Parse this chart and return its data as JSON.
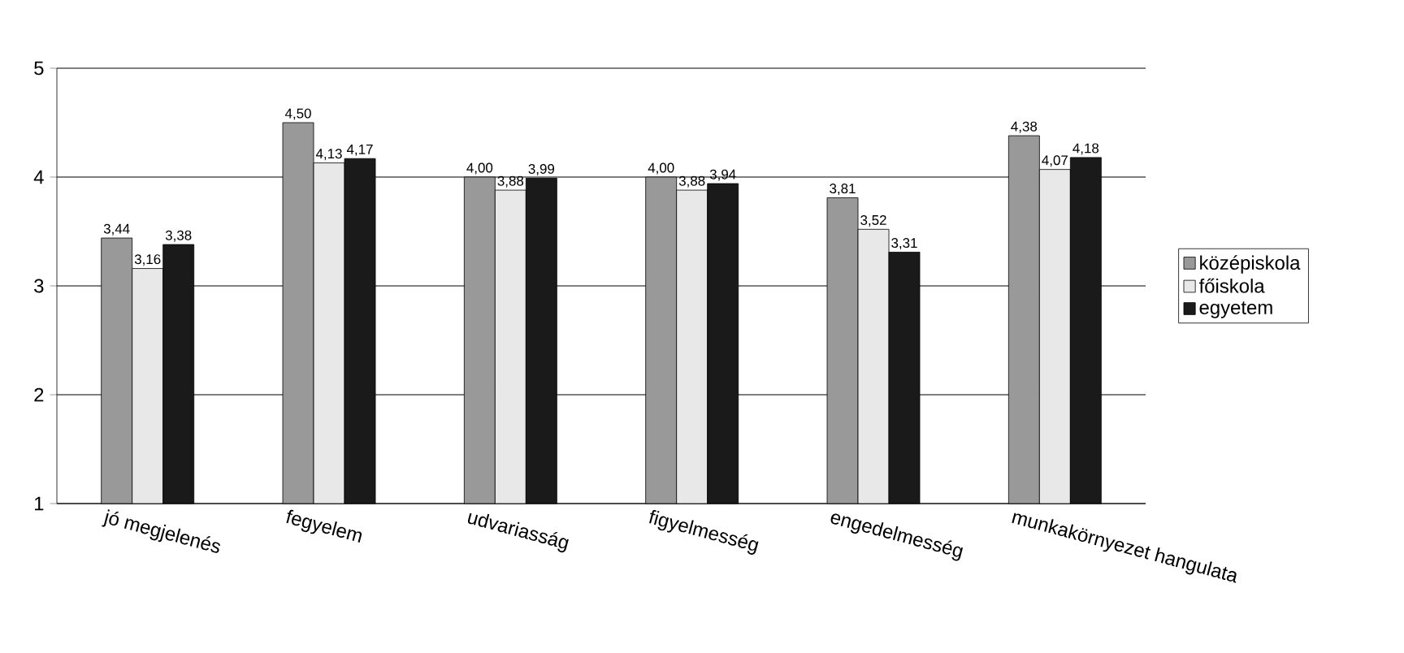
{
  "chart_data": {
    "type": "bar",
    "categories": [
      "jó megjelenés",
      "fegyelem",
      "udvariasság",
      "figyelmesség",
      "engedelmesség",
      "munkakörnyezet hangulata"
    ],
    "series": [
      {
        "name": "középiskola",
        "color": "#999999",
        "values": [
          3.44,
          4.5,
          4.0,
          4.0,
          3.81,
          4.38
        ],
        "value_labels": [
          "3,44",
          "4,50",
          "4,00",
          "4,00",
          "3,81",
          "4,38"
        ]
      },
      {
        "name": "főiskola",
        "color": "#e8e8e8",
        "values": [
          3.16,
          4.13,
          3.88,
          3.88,
          3.52,
          4.07
        ],
        "value_labels": [
          "3,16",
          "4,13",
          "3,88",
          "3,88",
          "3,52",
          "4,07"
        ]
      },
      {
        "name": "egyetem",
        "color": "#1a1a1a",
        "values": [
          3.38,
          4.17,
          3.99,
          3.94,
          3.31,
          4.18
        ],
        "value_labels": [
          "3,38",
          "4,17",
          "3,99",
          "3,94",
          "3,31",
          "4,18"
        ]
      }
    ],
    "ylim": [
      1,
      5
    ],
    "yticks": [
      1,
      2,
      3,
      4,
      5
    ],
    "grid": "y",
    "legend": "right"
  }
}
